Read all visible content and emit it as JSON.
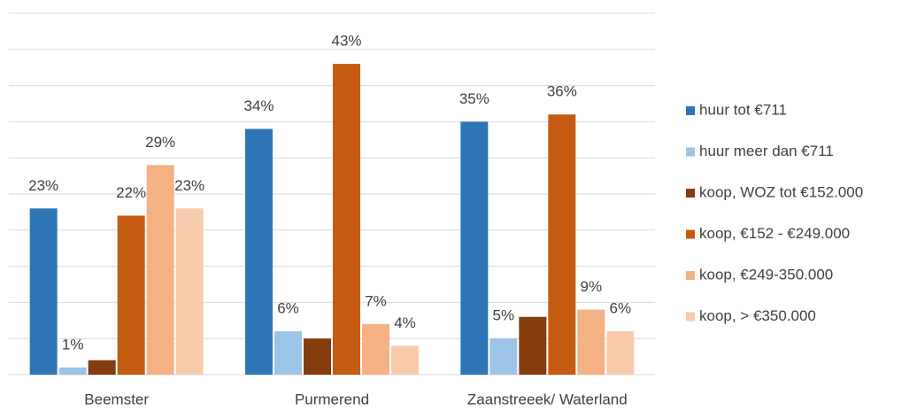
{
  "chart_data": {
    "type": "bar",
    "categories": [
      "Beemster",
      "Purmerend",
      "Zaanstreeek/ Waterland"
    ],
    "series": [
      {
        "name": "huur tot €711",
        "color": "#2e75b6",
        "values": [
          23,
          34,
          35
        ],
        "value_labels": [
          "23%",
          "34%",
          "35%"
        ]
      },
      {
        "name": "huur meer dan €711",
        "color": "#9dc3e6",
        "values": [
          1,
          6,
          5
        ],
        "value_labels": [
          "1%",
          "6%",
          "5%"
        ]
      },
      {
        "name": "koop, WOZ tot €152.000",
        "color": "#843c0c",
        "values": [
          2,
          5,
          8
        ],
        "value_labels": [
          null,
          null,
          null
        ]
      },
      {
        "name": "koop,  €152 - €249.000",
        "color": "#c55a11",
        "values": [
          22,
          43,
          36
        ],
        "value_labels": [
          "22%",
          "43%",
          "36%"
        ]
      },
      {
        "name": "koop, €249-350.000",
        "color": "#f4b183",
        "values": [
          29,
          7,
          9
        ],
        "value_labels": [
          "29%",
          "7%",
          "9%"
        ]
      },
      {
        "name": "koop,  > €350.000",
        "color": "#f8cbad",
        "values": [
          23,
          4,
          6
        ],
        "value_labels": [
          "23%",
          "4%",
          "6%"
        ]
      }
    ],
    "ylim": [
      0,
      50
    ],
    "yticks": [
      0,
      5,
      10,
      15,
      20,
      25,
      30,
      35,
      40,
      45,
      50
    ],
    "grid": true,
    "legend": "right"
  }
}
